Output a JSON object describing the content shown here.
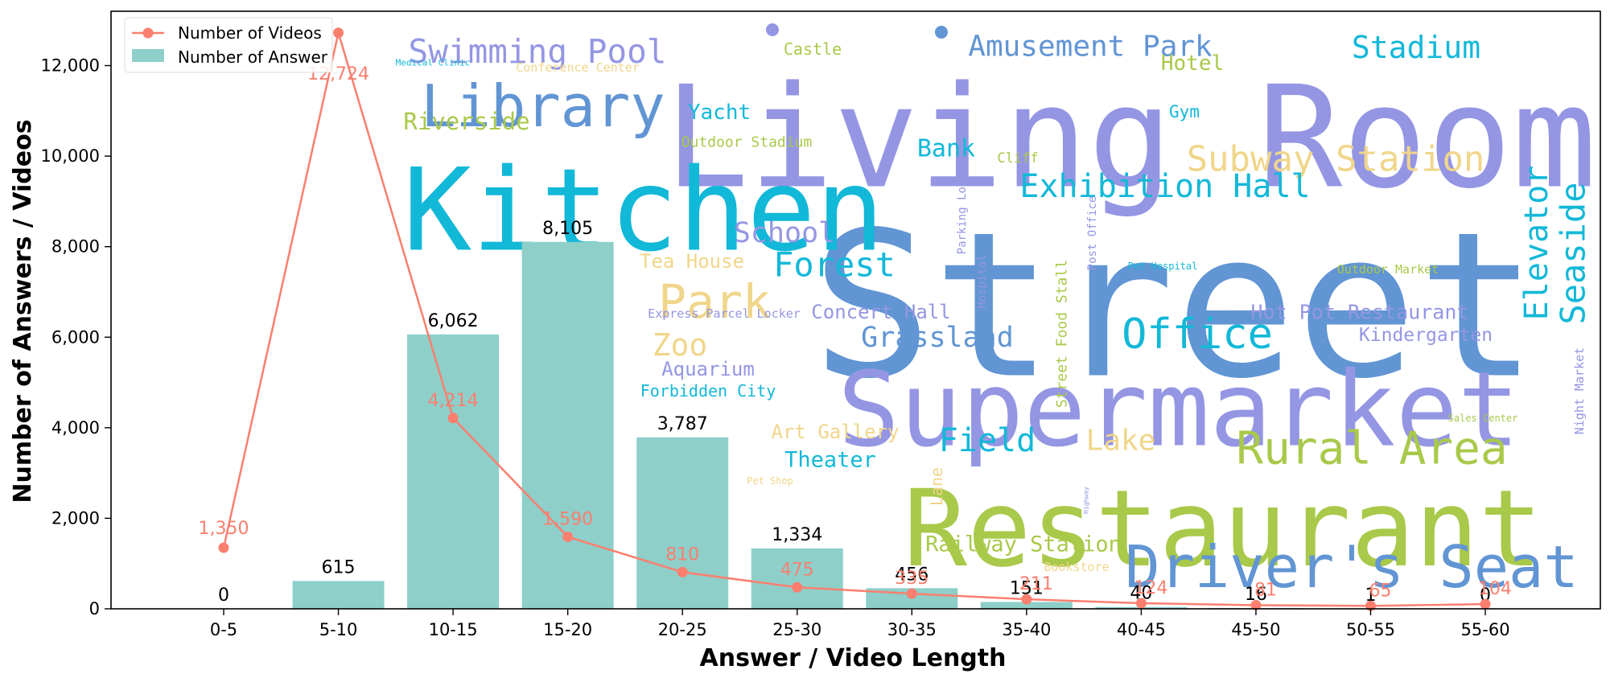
{
  "chart_data": {
    "type": "bar",
    "categories": [
      "0-5",
      "5-10",
      "10-15",
      "15-20",
      "20-25",
      "25-30",
      "30-35",
      "35-40",
      "40-45",
      "45-50",
      "50-55",
      "55-60"
    ],
    "series": [
      {
        "name": "Number of Answer",
        "type": "bar",
        "color": "#8ecfc9",
        "values": [
          0,
          615,
          6062,
          8105,
          3787,
          1334,
          456,
          151,
          40,
          16,
          1,
          0
        ],
        "labels": [
          "0",
          "615",
          "6,062",
          "8,105",
          "3,787",
          "1,334",
          "456",
          "151",
          "40",
          "16",
          "1",
          "0"
        ]
      },
      {
        "name": "Number of Videos",
        "type": "line",
        "color": "#fa7f6f",
        "values": [
          1350,
          12724,
          4214,
          1590,
          810,
          475,
          335,
          211,
          124,
          81,
          65,
          104
        ],
        "labels": [
          "1,350",
          "12,724",
          "4,214",
          "1,590",
          "810",
          "475",
          "335",
          "211",
          "124",
          "81",
          "65",
          "104"
        ]
      }
    ],
    "xlabel": "Answer / Video Length",
    "ylabel": "Number of Answers / Videos",
    "ylim": [
      0,
      13200
    ],
    "yticks": [
      0,
      2000,
      4000,
      6000,
      8000,
      10000,
      12000
    ],
    "ytick_labels": [
      "0",
      "2,000",
      "4,000",
      "6,000",
      "8,000",
      "10,000",
      "12,000"
    ],
    "grid": false,
    "legend": {
      "placement": "top-left",
      "entries": [
        "Number of Videos",
        "Number of Answer"
      ]
    }
  },
  "word_cloud": [
    {
      "text": "Living Room",
      "color": "#9496e3"
    },
    {
      "text": "Street",
      "color": "#6195d4"
    },
    {
      "text": "Kitchen",
      "color": "#12b8d8"
    },
    {
      "text": "Supermarket",
      "color": "#9496e3"
    },
    {
      "text": "Restaurant",
      "color": "#a9c94a"
    },
    {
      "text": "Driver's Seat",
      "color": "#6195d4"
    },
    {
      "text": "Library",
      "color": "#6195d4"
    },
    {
      "text": "Swimming Pool",
      "color": "#9496e3"
    },
    {
      "text": "Amusement Park",
      "color": "#6195d4"
    },
    {
      "text": "Stadium",
      "color": "#12b8d8"
    },
    {
      "text": "Hotel",
      "color": "#a9c94a"
    },
    {
      "text": "Castle",
      "color": "#a9c94a"
    },
    {
      "text": "Conference Center",
      "color": "#f0d68a"
    },
    {
      "text": "Medical Clinic",
      "color": "#12b8d8"
    },
    {
      "text": "Riverside",
      "color": "#a9c94a"
    },
    {
      "text": "Yacht",
      "color": "#12b8d8"
    },
    {
      "text": "Gym",
      "color": "#12b8d8"
    },
    {
      "text": "Outdoor Stadium",
      "color": "#a9c94a"
    },
    {
      "text": "Bank",
      "color": "#12b8d8"
    },
    {
      "text": "Cliff",
      "color": "#a9c94a"
    },
    {
      "text": "Subway Station",
      "color": "#f0d68a"
    },
    {
      "text": "Exhibition Hall",
      "color": "#12b8d8"
    },
    {
      "text": "Parking Lot",
      "color": "#9496e3"
    },
    {
      "text": "Post Office",
      "color": "#9496e3"
    },
    {
      "text": "School",
      "color": "#9496e3"
    },
    {
      "text": "Tea House",
      "color": "#f0d68a"
    },
    {
      "text": "Forest",
      "color": "#12b8d8"
    },
    {
      "text": "Park",
      "color": "#f0d68a"
    },
    {
      "text": "Hospital",
      "color": "#9496e3"
    },
    {
      "text": "Street Food Stall",
      "color": "#a9c94a"
    },
    {
      "text": "Pet Hospital",
      "color": "#12b8d8"
    },
    {
      "text": "Outdoor Market",
      "color": "#a9c94a"
    },
    {
      "text": "Elevator",
      "color": "#12b8d8"
    },
    {
      "text": "Seaside",
      "color": "#12b8d8"
    },
    {
      "text": "Express Parcel Locker",
      "color": "#9496e3"
    },
    {
      "text": "Concert Hall",
      "color": "#9496e3"
    },
    {
      "text": "Hot Pot Restaurant",
      "color": "#9496e3"
    },
    {
      "text": "Zoo",
      "color": "#f0d68a"
    },
    {
      "text": "Grassland",
      "color": "#6195d4"
    },
    {
      "text": "Office",
      "color": "#12b8d8"
    },
    {
      "text": "Kindergarten",
      "color": "#9496e3"
    },
    {
      "text": "Aquarium",
      "color": "#9496e3"
    },
    {
      "text": "Forbidden City",
      "color": "#12b8d8"
    },
    {
      "text": "Night Market",
      "color": "#9496e3"
    },
    {
      "text": "Art Gallery",
      "color": "#f0d68a"
    },
    {
      "text": "Field",
      "color": "#12b8d8"
    },
    {
      "text": "Lake",
      "color": "#f0d68a"
    },
    {
      "text": "Rural Area",
      "color": "#a9c94a"
    },
    {
      "text": "Sales Center",
      "color": "#a9c94a"
    },
    {
      "text": "Theater",
      "color": "#12b8d8"
    },
    {
      "text": "Pet Shop",
      "color": "#f0d68a"
    },
    {
      "text": "Lane",
      "color": "#f0d68a"
    },
    {
      "text": "Highway",
      "color": "#9496e3"
    },
    {
      "text": "Railway Station",
      "color": "#a9c94a"
    },
    {
      "text": "Bookstore",
      "color": "#f0d68a"
    }
  ]
}
